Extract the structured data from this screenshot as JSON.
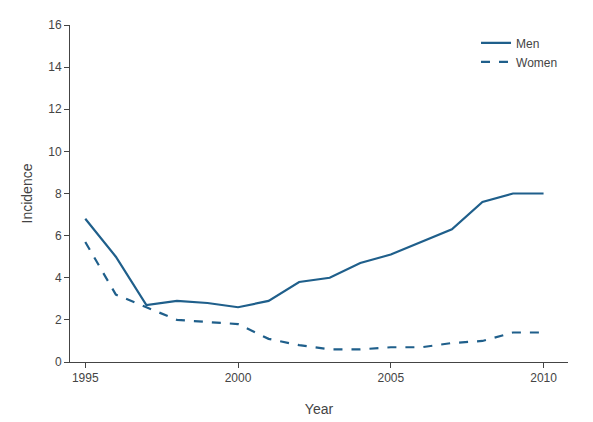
{
  "chart_data": {
    "type": "line",
    "xlabel": "Year",
    "ylabel": "Incidence",
    "x": [
      1995,
      1996,
      1997,
      1998,
      1999,
      2000,
      2001,
      2002,
      2003,
      2004,
      2005,
      2006,
      2007,
      2008,
      2009,
      2010
    ],
    "series": [
      {
        "name": "Men",
        "color": "#1f5f8b",
        "line_style": "solid",
        "values": [
          6.8,
          5.0,
          2.7,
          2.9,
          2.8,
          2.6,
          2.9,
          3.8,
          4.0,
          4.7,
          5.1,
          5.7,
          6.3,
          7.6,
          8.0,
          8.0
        ]
      },
      {
        "name": "Women",
        "color": "#1f5f8b",
        "line_style": "dashed",
        "values": [
          5.7,
          3.2,
          2.6,
          2.0,
          1.9,
          1.8,
          1.1,
          0.8,
          0.6,
          0.6,
          0.7,
          0.7,
          0.9,
          1.0,
          1.4,
          1.4
        ]
      }
    ],
    "xlim": [
      1994.5,
      2010.8
    ],
    "xticks": [
      1995,
      2000,
      2005,
      2010
    ],
    "ylim": [
      0,
      16
    ],
    "yticks": [
      0,
      2,
      4,
      6,
      8,
      10,
      12,
      14,
      16
    ],
    "grid": false,
    "legend": "upper right"
  }
}
